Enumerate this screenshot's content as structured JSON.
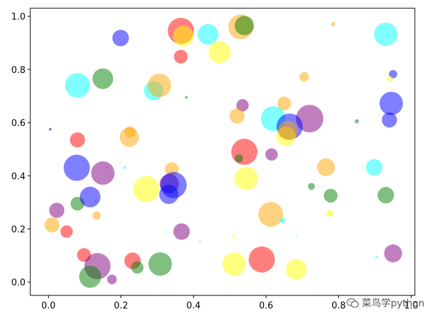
{
  "chart_data": {
    "type": "scatter",
    "title": "",
    "xlabel": "",
    "ylabel": "",
    "xlim": [
      -0.05,
      1.01
    ],
    "ylim": [
      -0.05,
      1.03
    ],
    "xticks": [
      "0.0",
      "0.2",
      "0.4",
      "0.6",
      "0.8",
      "1.0"
    ],
    "yticks": [
      "0.0",
      "0.2",
      "0.4",
      "0.6",
      "0.8",
      "1.0"
    ],
    "grid": false,
    "alpha": 0.5,
    "palette": {
      "red": "#ff0000",
      "orange": "#ffa500",
      "yellow": "#ffff00",
      "green": "#008000",
      "cyan": "#00ffff",
      "blue": "#0000ff",
      "purple": "#800080"
    },
    "points": [
      {
        "x": 0.365,
        "y": 0.945,
        "r": 19,
        "c": "red"
      },
      {
        "x": 0.372,
        "y": 0.925,
        "r": 15,
        "c": "yellow"
      },
      {
        "x": 0.53,
        "y": 0.96,
        "r": 18,
        "c": "orange"
      },
      {
        "x": 0.54,
        "y": 0.965,
        "r": 14,
        "c": "green"
      },
      {
        "x": 0.199,
        "y": 0.918,
        "r": 12,
        "c": "blue"
      },
      {
        "x": 0.44,
        "y": 0.932,
        "r": 15,
        "c": "cyan"
      },
      {
        "x": 0.785,
        "y": 0.97,
        "r": 3,
        "c": "orange"
      },
      {
        "x": 0.93,
        "y": 0.932,
        "r": 17,
        "c": "cyan"
      },
      {
        "x": 0.365,
        "y": 0.848,
        "r": 10,
        "c": "red"
      },
      {
        "x": 0.472,
        "y": 0.865,
        "r": 16,
        "c": "yellow"
      },
      {
        "x": 0.08,
        "y": 0.74,
        "r": 18,
        "c": "cyan"
      },
      {
        "x": 0.15,
        "y": 0.765,
        "r": 15,
        "c": "green"
      },
      {
        "x": 0.29,
        "y": 0.72,
        "r": 14,
        "c": "cyan"
      },
      {
        "x": 0.306,
        "y": 0.74,
        "r": 17,
        "c": "orange"
      },
      {
        "x": 0.38,
        "y": 0.695,
        "r": 2,
        "c": "green"
      },
      {
        "x": 0.705,
        "y": 0.772,
        "r": 7,
        "c": "orange"
      },
      {
        "x": 0.702,
        "y": 0.775,
        "r": 1,
        "c": "orange"
      },
      {
        "x": 0.95,
        "y": 0.782,
        "r": 6,
        "c": "blue"
      },
      {
        "x": 0.942,
        "y": 0.765,
        "r": 4,
        "c": "yellow"
      },
      {
        "x": 0.945,
        "y": 0.672,
        "r": 17,
        "c": "blue"
      },
      {
        "x": 0.94,
        "y": 0.61,
        "r": 11,
        "c": "blue"
      },
      {
        "x": 0.535,
        "y": 0.665,
        "r": 9,
        "c": "purple"
      },
      {
        "x": 0.65,
        "y": 0.672,
        "r": 10,
        "c": "orange"
      },
      {
        "x": 0.72,
        "y": 0.615,
        "r": 20,
        "c": "purple"
      },
      {
        "x": 0.62,
        "y": 0.615,
        "r": 18,
        "c": "cyan"
      },
      {
        "x": 0.665,
        "y": 0.585,
        "r": 19,
        "c": "blue"
      },
      {
        "x": 0.655,
        "y": 0.548,
        "r": 14,
        "c": "yellow"
      },
      {
        "x": 0.66,
        "y": 0.57,
        "r": 14,
        "c": "orange"
      },
      {
        "x": 0.52,
        "y": 0.625,
        "r": 11,
        "c": "orange"
      },
      {
        "x": 0.85,
        "y": 0.605,
        "r": 3,
        "c": "green"
      },
      {
        "x": 0.005,
        "y": 0.575,
        "r": 2,
        "c": "blue"
      },
      {
        "x": 0.08,
        "y": 0.535,
        "r": 11,
        "c": "red"
      },
      {
        "x": 0.225,
        "y": 0.565,
        "r": 8,
        "c": "orange"
      },
      {
        "x": 0.223,
        "y": 0.545,
        "r": 14,
        "c": "orange"
      },
      {
        "x": 0.54,
        "y": 0.49,
        "r": 19,
        "c": "red"
      },
      {
        "x": 0.525,
        "y": 0.465,
        "r": 6,
        "c": "green"
      },
      {
        "x": 0.615,
        "y": 0.48,
        "r": 9,
        "c": "purple"
      },
      {
        "x": 0.078,
        "y": 0.43,
        "r": 19,
        "c": "blue"
      },
      {
        "x": 0.15,
        "y": 0.41,
        "r": 17,
        "c": "purple"
      },
      {
        "x": 0.16,
        "y": 0.43,
        "r": 1,
        "c": "purple"
      },
      {
        "x": 0.21,
        "y": 0.43,
        "r": 2,
        "c": "cyan"
      },
      {
        "x": 0.34,
        "y": 0.425,
        "r": 10,
        "c": "orange"
      },
      {
        "x": 0.765,
        "y": 0.432,
        "r": 13,
        "c": "orange"
      },
      {
        "x": 0.898,
        "y": 0.432,
        "r": 12,
        "c": "cyan"
      },
      {
        "x": 0.545,
        "y": 0.39,
        "r": 17,
        "c": "yellow"
      },
      {
        "x": 0.27,
        "y": 0.35,
        "r": 19,
        "c": "yellow"
      },
      {
        "x": 0.333,
        "y": 0.37,
        "r": 14,
        "c": "purple"
      },
      {
        "x": 0.345,
        "y": 0.365,
        "r": 19,
        "c": "blue"
      },
      {
        "x": 0.332,
        "y": 0.33,
        "r": 14,
        "c": "blue"
      },
      {
        "x": 0.725,
        "y": 0.36,
        "r": 5,
        "c": "green"
      },
      {
        "x": 0.778,
        "y": 0.325,
        "r": 10,
        "c": "green"
      },
      {
        "x": 0.93,
        "y": 0.327,
        "r": 12,
        "c": "green"
      },
      {
        "x": 0.023,
        "y": 0.27,
        "r": 11,
        "c": "purple"
      },
      {
        "x": 0.08,
        "y": 0.295,
        "r": 10,
        "c": "green"
      },
      {
        "x": 0.115,
        "y": 0.32,
        "r": 15,
        "c": "blue"
      },
      {
        "x": 0.13,
        "y": 0.305,
        "r": 1,
        "c": "blue"
      },
      {
        "x": 0.133,
        "y": 0.25,
        "r": 6,
        "c": "orange"
      },
      {
        "x": 0.613,
        "y": 0.255,
        "r": 18,
        "c": "orange"
      },
      {
        "x": 0.645,
        "y": 0.232,
        "r": 4,
        "c": "cyan"
      },
      {
        "x": 0.775,
        "y": 0.258,
        "r": 5,
        "c": "yellow"
      },
      {
        "x": 0.01,
        "y": 0.215,
        "r": 11,
        "c": "orange"
      },
      {
        "x": 0.05,
        "y": 0.19,
        "r": 9,
        "c": "red"
      },
      {
        "x": 0.367,
        "y": 0.19,
        "r": 12,
        "c": "purple"
      },
      {
        "x": 0.418,
        "y": 0.152,
        "r": 1,
        "c": "red"
      },
      {
        "x": 0.512,
        "y": 0.17,
        "r": 2,
        "c": "yellow"
      },
      {
        "x": 0.685,
        "y": 0.17,
        "r": 1,
        "c": "cyan"
      },
      {
        "x": 0.098,
        "y": 0.102,
        "r": 10,
        "c": "red"
      },
      {
        "x": 0.135,
        "y": 0.06,
        "r": 19,
        "c": "purple"
      },
      {
        "x": 0.115,
        "y": 0.02,
        "r": 16,
        "c": "green"
      },
      {
        "x": 0.175,
        "y": 0.01,
        "r": 7,
        "c": "purple"
      },
      {
        "x": 0.232,
        "y": 0.08,
        "r": 12,
        "c": "red"
      },
      {
        "x": 0.245,
        "y": 0.055,
        "r": 9,
        "c": "green"
      },
      {
        "x": 0.308,
        "y": 0.068,
        "r": 17,
        "c": "green"
      },
      {
        "x": 0.512,
        "y": 0.068,
        "r": 17,
        "c": "yellow"
      },
      {
        "x": 0.588,
        "y": 0.085,
        "r": 19,
        "c": "red"
      },
      {
        "x": 0.683,
        "y": 0.048,
        "r": 15,
        "c": "yellow"
      },
      {
        "x": 0.905,
        "y": 0.095,
        "r": 2,
        "c": "cyan"
      },
      {
        "x": 0.95,
        "y": 0.108,
        "r": 13,
        "c": "purple"
      }
    ]
  },
  "watermark": {
    "text": "菜鸟学python",
    "icon": "wechat-icon"
  }
}
